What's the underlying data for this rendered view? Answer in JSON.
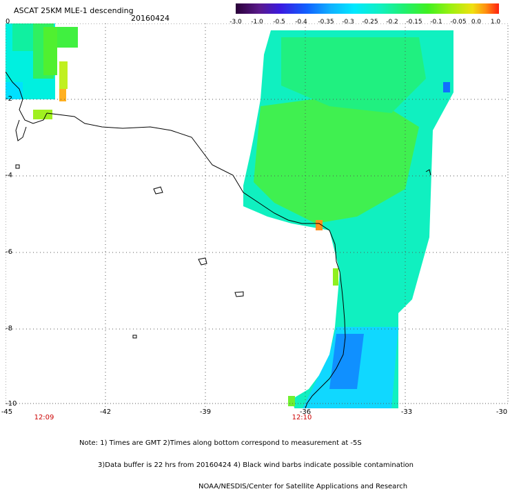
{
  "header": {
    "title": "ASCAT 25KM MLE-1 descending",
    "date": "20160424"
  },
  "colorbar": {
    "tick_labels": [
      "-3.0",
      "-1.0",
      "-0.5",
      "-0.4",
      "-0.35",
      "-0.3",
      "-0.25",
      "-0.2",
      "-0.15",
      "-0.1",
      "-0.05",
      "0.0",
      "1.0"
    ],
    "colors": [
      "#2a0038",
      "#5a1a8c",
      "#3a1ae0",
      "#1060ff",
      "#10b0ff",
      "#00e8ff",
      "#10f0c0",
      "#20f070",
      "#40f020",
      "#a0f010",
      "#f0e010",
      "#ff9010",
      "#ff2010"
    ]
  },
  "map": {
    "latitude_labels": [
      "0",
      "-2",
      "-4",
      "-6",
      "-8",
      "-10"
    ],
    "longitude_labels": [
      "-45",
      "-42",
      "-39",
      "-36",
      "-33",
      "-30"
    ],
    "time_labels": [
      "12:09",
      "12:10"
    ],
    "colors": {
      "coast": "#000000",
      "grid": "#555555"
    }
  },
  "notes": {
    "line1": "Note: 1) Times are GMT 2)Times along bottom correspond to measurement at -5S",
    "line2": "3)Data buffer is 22 hrs from 20160424 4) Black wind barbs indicate possible contamination",
    "line3": "NOAA/NESDIS/Center for Satellite Applications and Research"
  }
}
